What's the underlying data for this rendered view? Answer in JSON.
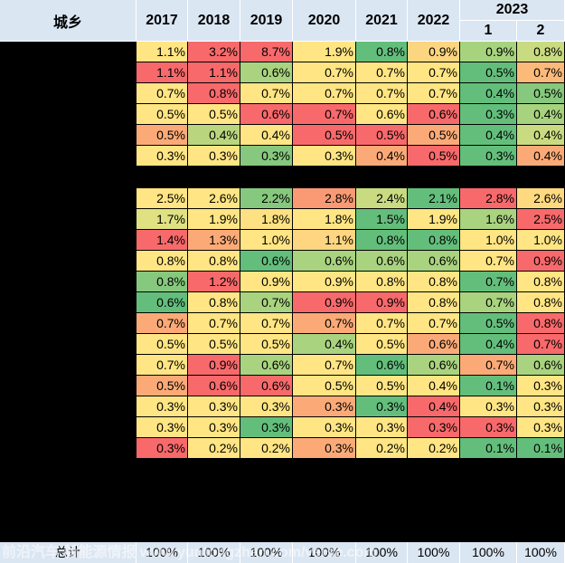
{
  "header": {
    "corner": "城乡",
    "years": [
      "2017",
      "2018",
      "2019",
      "2020",
      "2021",
      "2022"
    ],
    "year_2023": "2023",
    "months_2023": [
      "1",
      "2"
    ]
  },
  "footer": {
    "total_label": "总计",
    "values": [
      "100%",
      "100%",
      "100%",
      "100%",
      "100%",
      "100%",
      "100%",
      "100%"
    ]
  },
  "watermark": "前沿汽车 新能源情报 www.yuntongzhan.com/verse.com",
  "colors": {
    "header_bg": "#dbe6f3",
    "scale_low": "#f8696b",
    "scale_mid": "#ffeb84",
    "scale_high": "#63be7b"
  },
  "chart_data": {
    "type": "table",
    "columns": [
      "2017",
      "2018",
      "2019",
      "2020",
      "2021",
      "2022",
      "2023-1",
      "2023-2"
    ],
    "groups": [
      {
        "rows": [
          [
            "1.1%",
            "3.2%",
            "8.7%",
            "1.9%",
            "0.8%",
            "0.9%",
            "0.9%",
            "0.8%"
          ],
          [
            "1.1%",
            "1.1%",
            "0.6%",
            "0.7%",
            "0.7%",
            "0.7%",
            "0.5%",
            "0.7%"
          ],
          [
            "0.7%",
            "0.8%",
            "0.7%",
            "0.7%",
            "0.7%",
            "0.7%",
            "0.4%",
            "0.5%"
          ],
          [
            "0.5%",
            "0.5%",
            "0.6%",
            "0.7%",
            "0.6%",
            "0.6%",
            "0.3%",
            "0.4%"
          ],
          [
            "0.5%",
            "0.4%",
            "0.4%",
            "0.5%",
            "0.5%",
            "0.5%",
            "0.4%",
            "0.4%"
          ],
          [
            "0.3%",
            "0.3%",
            "0.3%",
            "0.3%",
            "0.4%",
            "0.5%",
            "0.3%",
            "0.4%"
          ]
        ],
        "colors": [
          [
            "#ffe583",
            "#f8696b",
            "#f8696b",
            "#ffe583",
            "#63be7b",
            "#fbd57f",
            "#a7d37e",
            "#c9db80"
          ],
          [
            "#f8696b",
            "#f8696b",
            "#a9d37f",
            "#ffe583",
            "#ffe583",
            "#ffe583",
            "#63be7b",
            "#fcba7a"
          ],
          [
            "#ffe583",
            "#f8696b",
            "#ffe583",
            "#ffe583",
            "#ffe583",
            "#ffe583",
            "#63be7b",
            "#86c87d"
          ],
          [
            "#ffe583",
            "#ffe583",
            "#f8696b",
            "#f8696b",
            "#ffe583",
            "#f8696b",
            "#63be7b",
            "#a7d37e"
          ],
          [
            "#fbaa77",
            "#b9d67f",
            "#ffe583",
            "#f8696b",
            "#f8696b",
            "#fbaa77",
            "#63be7b",
            "#c9db80"
          ],
          [
            "#ffe583",
            "#ffe583",
            "#86c87d",
            "#ffe583",
            "#fbaa77",
            "#f8696b",
            "#63be7b",
            "#fbaa77"
          ]
        ]
      },
      {
        "rows": [
          [
            "2.5%",
            "2.6%",
            "2.2%",
            "2.8%",
            "2.4%",
            "2.1%",
            "2.8%",
            "2.6%"
          ],
          [
            "1.7%",
            "1.9%",
            "1.8%",
            "1.8%",
            "1.5%",
            "1.9%",
            "1.6%",
            "2.5%"
          ],
          [
            "1.4%",
            "1.3%",
            "1.0%",
            "1.1%",
            "0.8%",
            "0.8%",
            "1.0%",
            "1.0%"
          ],
          [
            "0.8%",
            "0.8%",
            "0.6%",
            "0.6%",
            "0.6%",
            "0.6%",
            "0.7%",
            "0.9%"
          ],
          [
            "0.8%",
            "1.2%",
            "0.9%",
            "0.9%",
            "0.8%",
            "0.8%",
            "0.7%",
            "0.8%"
          ],
          [
            "0.6%",
            "0.8%",
            "0.7%",
            "0.9%",
            "0.9%",
            "0.8%",
            "0.7%",
            "0.8%"
          ],
          [
            "0.7%",
            "0.7%",
            "0.7%",
            "0.7%",
            "0.7%",
            "0.7%",
            "0.5%",
            "0.8%"
          ],
          [
            "0.5%",
            "0.5%",
            "0.5%",
            "0.4%",
            "0.5%",
            "0.6%",
            "0.4%",
            "0.7%"
          ],
          [
            "0.7%",
            "0.9%",
            "0.6%",
            "0.7%",
            "0.6%",
            "0.6%",
            "0.7%",
            "0.6%"
          ],
          [
            "0.5%",
            "0.6%",
            "0.6%",
            "0.5%",
            "0.5%",
            "0.4%",
            "0.1%",
            "0.3%"
          ],
          [
            "0.3%",
            "0.3%",
            "0.3%",
            "0.3%",
            "0.3%",
            "0.4%",
            "0.3%",
            "0.3%"
          ],
          [
            "0.3%",
            "0.3%",
            "0.3%",
            "0.3%",
            "0.3%",
            "0.3%",
            "0.3%",
            "0.3%"
          ],
          [
            "0.3%",
            "0.2%",
            "0.2%",
            "0.3%",
            "0.2%",
            "0.2%",
            "0.1%",
            "0.1%"
          ]
        ],
        "colors": [
          [
            "#ffe583",
            "#ffe583",
            "#86c87d",
            "#fa9a74",
            "#c9db80",
            "#63be7b",
            "#f8696b",
            "#fed980"
          ],
          [
            "#dfe182",
            "#ffe583",
            "#fee182",
            "#ffe583",
            "#63be7b",
            "#ffe583",
            "#a9d37f",
            "#f8696b"
          ],
          [
            "#f8696b",
            "#fbaa77",
            "#ffe583",
            "#fed580",
            "#63be7b",
            "#63be7b",
            "#ffe583",
            "#ffe583"
          ],
          [
            "#ffe583",
            "#ffe583",
            "#63be7b",
            "#a9d37f",
            "#a9d37f",
            "#a9d37f",
            "#ffe583",
            "#f8696b"
          ],
          [
            "#86c87d",
            "#f8696b",
            "#ffe583",
            "#ffe583",
            "#ffe583",
            "#ffe583",
            "#63be7b",
            "#ffe583"
          ],
          [
            "#63be7b",
            "#ffe583",
            "#a9d37f",
            "#f8696b",
            "#f8696b",
            "#ffe583",
            "#a9d37f",
            "#ffe583"
          ],
          [
            "#fbaa77",
            "#ffe583",
            "#ffe583",
            "#fbaa77",
            "#ffe583",
            "#ffe583",
            "#63be7b",
            "#f8696b"
          ],
          [
            "#ffe583",
            "#ffe583",
            "#ffe583",
            "#a9d37f",
            "#ffe583",
            "#fbaa77",
            "#63be7b",
            "#f8696b"
          ],
          [
            "#ffe583",
            "#f8696b",
            "#a9d37f",
            "#ffe583",
            "#63be7b",
            "#a9d37f",
            "#fbaa77",
            "#a9d37f"
          ],
          [
            "#fbaa77",
            "#f8696b",
            "#f8696b",
            "#ffe583",
            "#ffe583",
            "#ffe583",
            "#63be7b",
            "#ffe583"
          ],
          [
            "#ffe583",
            "#ffe583",
            "#ffe583",
            "#fbaa77",
            "#63be7b",
            "#f8696b",
            "#ffe583",
            "#ffe583"
          ],
          [
            "#ffe583",
            "#ffe583",
            "#63be7b",
            "#ffe583",
            "#ffe583",
            "#f8696b",
            "#f8696b",
            "#ffe583"
          ],
          [
            "#f8696b",
            "#ffe583",
            "#ffe583",
            "#fbaa77",
            "#ffe583",
            "#ffe583",
            "#63be7b",
            "#63be7b"
          ]
        ]
      }
    ]
  }
}
